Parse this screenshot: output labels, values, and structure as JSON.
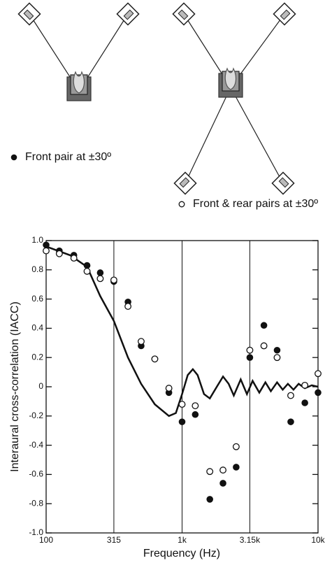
{
  "chart_data": {
    "type": "scatter",
    "x_label": "Frequency (Hz)",
    "y_label": "Interaural cross-correlation (IACC)",
    "log_x": true,
    "grid": true,
    "xlim": [
      100,
      10000
    ],
    "xticks": [
      100,
      315,
      {
        "value": 1000,
        "label": "1k"
      },
      {
        "value": 3150,
        "label": "3.15k"
      },
      {
        "value": 10000,
        "label": "10k"
      }
    ],
    "ylim": [
      -1,
      1
    ],
    "yticks": [
      {
        "value": -1,
        "label": "-1.0"
      },
      -0.8,
      -0.6,
      -0.4,
      -0.2,
      0,
      0.2,
      0.4,
      0.6,
      0.8,
      {
        "value": 1,
        "label": "1.0"
      }
    ],
    "x": [
      100,
      125,
      160,
      200,
      250,
      315,
      400,
      500,
      630,
      800,
      1000,
      1250,
      1600,
      2000,
      2500,
      3150,
      4000,
      5000,
      6300,
      8000,
      10000
    ],
    "series": [
      {
        "name": "Front pair at ±30º",
        "color": "#111111",
        "marker": "filled",
        "values": [
          0.97,
          0.93,
          0.9,
          0.83,
          0.78,
          0.72,
          0.58,
          0.28,
          0.19,
          -0.04,
          -0.24,
          -0.19,
          -0.77,
          -0.66,
          -0.55,
          0.2,
          0.42,
          0.25,
          -0.24,
          -0.11,
          -0.04
        ]
      },
      {
        "name": "Front & rear pairs at ±30º",
        "color": "#111111",
        "marker": "open",
        "values": [
          0.93,
          0.91,
          0.88,
          0.79,
          0.74,
          0.73,
          0.55,
          0.31,
          0.19,
          -0.01,
          -0.12,
          -0.13,
          -0.58,
          -0.57,
          -0.41,
          0.25,
          0.28,
          0.2,
          -0.06,
          0.01,
          0.09
        ]
      }
    ],
    "curve": {
      "color": "#111111",
      "x": [
        100,
        150,
        200,
        250,
        315,
        400,
        500,
        630,
        800,
        900,
        1000,
        1100,
        1200,
        1300,
        1450,
        1600,
        1800,
        2000,
        2200,
        2400,
        2700,
        3000,
        3300,
        3700,
        4100,
        4500,
        5000,
        5500,
        6000,
        6600,
        7200,
        8000,
        9000,
        10000
      ],
      "values": [
        0.96,
        0.9,
        0.82,
        0.62,
        0.45,
        0.2,
        0.02,
        -0.12,
        -0.2,
        -0.18,
        -0.05,
        0.08,
        0.12,
        0.08,
        -0.05,
        -0.08,
        0,
        0.07,
        0.02,
        -0.06,
        0.05,
        -0.05,
        0.04,
        -0.04,
        0.03,
        -0.03,
        0.03,
        -0.02,
        0.02,
        -0.02,
        0.02,
        -0.01,
        0.01,
        0
      ]
    }
  }
}
